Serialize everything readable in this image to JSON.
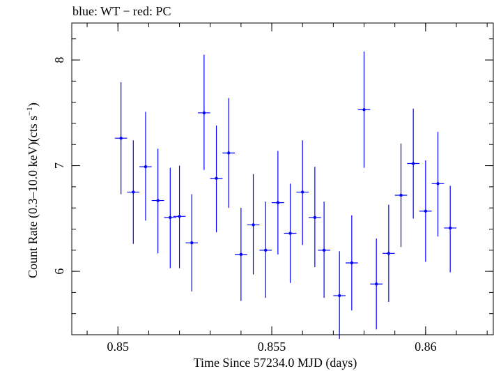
{
  "chart_data": {
    "type": "scatter",
    "title": "blue: WT − red: PC",
    "xlabel": "Time Since 57234.0 MJD (days)",
    "ylabel_main": "Count Rate (0.3–10.0 keV)(cts s",
    "ylabel_sup": "−1",
    "ylabel_close": ")",
    "xlim": [
      0.8485,
      0.8622
    ],
    "ylim": [
      5.4,
      8.35
    ],
    "xticks": [
      {
        "value": 0.85,
        "label": "0.85"
      },
      {
        "value": 0.855,
        "label": "0.855"
      },
      {
        "value": 0.86,
        "label": "0.86"
      }
    ],
    "yticks": [
      {
        "value": 6,
        "label": "6"
      },
      {
        "value": 7,
        "label": "7"
      },
      {
        "value": 8,
        "label": "8"
      }
    ],
    "x_minor_step": 0.001,
    "y_minor_step": 0.2,
    "grid": false,
    "series": [
      {
        "color": "#0000ff",
        "x_half_width": 0.0002,
        "points": [
          {
            "x": 0.8501,
            "y": 7.26,
            "ylo": 6.73,
            "yhi": 7.79
          },
          {
            "x": 0.8505,
            "y": 6.75,
            "ylo": 6.26,
            "yhi": 7.24
          },
          {
            "x": 0.8509,
            "y": 6.99,
            "ylo": 6.48,
            "yhi": 7.51
          },
          {
            "x": 0.8513,
            "y": 6.67,
            "ylo": 6.17,
            "yhi": 7.16
          },
          {
            "x": 0.8517,
            "y": 6.51,
            "ylo": 6.03,
            "yhi": 6.98
          },
          {
            "x": 0.852,
            "y": 6.52,
            "ylo": 6.03,
            "yhi": 7.0
          },
          {
            "x": 0.8524,
            "y": 6.27,
            "ylo": 5.81,
            "yhi": 6.73
          },
          {
            "x": 0.8528,
            "y": 7.5,
            "ylo": 6.96,
            "yhi": 8.05
          },
          {
            "x": 0.8532,
            "y": 6.88,
            "ylo": 6.37,
            "yhi": 7.38
          },
          {
            "x": 0.8536,
            "y": 7.12,
            "ylo": 6.6,
            "yhi": 7.64
          },
          {
            "x": 0.854,
            "y": 6.16,
            "ylo": 5.72,
            "yhi": 6.6
          },
          {
            "x": 0.8544,
            "y": 6.44,
            "ylo": 5.97,
            "yhi": 6.92
          },
          {
            "x": 0.8548,
            "y": 6.2,
            "ylo": 5.75,
            "yhi": 6.66
          },
          {
            "x": 0.8552,
            "y": 6.65,
            "ylo": 6.16,
            "yhi": 7.14
          },
          {
            "x": 0.8556,
            "y": 6.36,
            "ylo": 5.89,
            "yhi": 6.83
          },
          {
            "x": 0.856,
            "y": 6.75,
            "ylo": 6.25,
            "yhi": 7.24
          },
          {
            "x": 0.8564,
            "y": 6.51,
            "ylo": 6.04,
            "yhi": 6.99
          },
          {
            "x": 0.8567,
            "y": 6.2,
            "ylo": 5.75,
            "yhi": 6.66
          },
          {
            "x": 0.8572,
            "y": 5.77,
            "ylo": 5.36,
            "yhi": 6.19
          },
          {
            "x": 0.8576,
            "y": 6.08,
            "ylo": 5.63,
            "yhi": 6.53
          },
          {
            "x": 0.858,
            "y": 7.53,
            "ylo": 6.98,
            "yhi": 8.08
          },
          {
            "x": 0.8584,
            "y": 5.88,
            "ylo": 5.45,
            "yhi": 6.31
          },
          {
            "x": 0.8588,
            "y": 6.17,
            "ylo": 5.71,
            "yhi": 6.63
          },
          {
            "x": 0.8592,
            "y": 6.72,
            "ylo": 6.23,
            "yhi": 7.21
          },
          {
            "x": 0.8596,
            "y": 7.02,
            "ylo": 6.5,
            "yhi": 7.54
          },
          {
            "x": 0.86,
            "y": 6.57,
            "ylo": 6.09,
            "yhi": 7.05
          },
          {
            "x": 0.8604,
            "y": 6.83,
            "ylo": 6.33,
            "yhi": 7.32
          },
          {
            "x": 0.8608,
            "y": 6.41,
            "ylo": 5.99,
            "yhi": 6.81
          }
        ]
      }
    ]
  }
}
